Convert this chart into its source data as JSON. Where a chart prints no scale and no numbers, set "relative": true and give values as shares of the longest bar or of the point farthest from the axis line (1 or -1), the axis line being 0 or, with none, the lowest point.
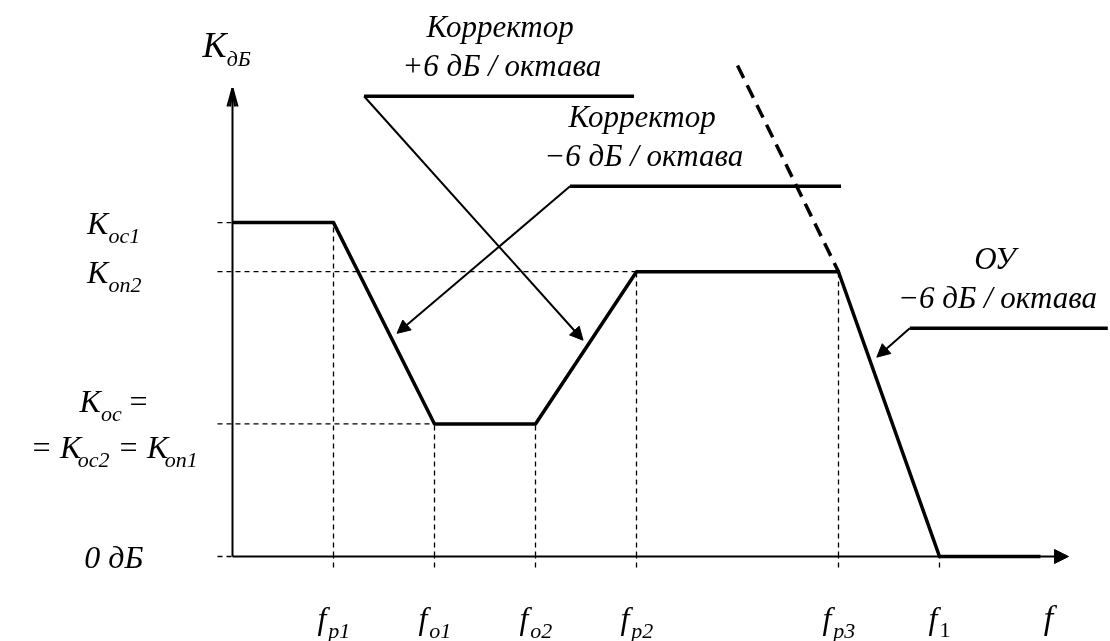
{
  "chart_data": {
    "type": "line",
    "relative": true,
    "line_style": "solid",
    "ylabel": "K$_{дБ}$",
    "xlabel": "f",
    "categories": [
      null,
      "f$_{р1}$",
      "f$_{о1}$",
      "f$_{о2}$",
      "f$_{р2}$",
      null,
      "f$_{р3}$",
      "f$_{1}$",
      null
    ],
    "series": [
      {
        "color": "#000000",
        "values": [
          0.68,
          0.68,
          0.27,
          0.27,
          0.58,
          0.58,
          0.58,
          0,
          0
        ]
      },
      {
        "color": "#000000",
        "line_style": "dashed",
        "values": [
          null,
          null,
          null,
          null,
          null,
          1,
          0.58,
          null,
          null
        ]
      }
    ],
    "ref_lines": [
      {
        "axis": "y",
        "value": 0.27,
        "label": "K$_{ос}$ =\n= K$_{ос2}$ = K$_{оп1}$",
        "color": "#000000",
        "line_style": "dashed"
      },
      {
        "axis": "y",
        "value": 0.58,
        "label": "K$_{оп2}$",
        "color": "#000000",
        "line_style": "dashed"
      },
      {
        "axis": "x",
        "value": "f$_{р1}$",
        "color": "#000000",
        "line_style": "dashed"
      },
      {
        "axis": "x",
        "value": "f$_{о1}$",
        "color": "#000000",
        "line_style": "dashed"
      },
      {
        "axis": "x",
        "value": "f$_{о2}$",
        "color": "#000000",
        "line_style": "dashed"
      },
      {
        "axis": "x",
        "value": "f$_{р2}$",
        "color": "#000000",
        "line_style": "dashed"
      },
      {
        "axis": "x",
        "value": "f$_{р3}$",
        "color": "#000000",
        "line_style": "dashed"
      }
    ],
    "annotations": [
      "Корректор\n+6 дБ / октава",
      "Корректор\n−6 дБ / октава",
      "ОУ\n−6 дБ / октава",
      "K$_{ос1}$",
      "0 дБ"
    ]
  }
}
